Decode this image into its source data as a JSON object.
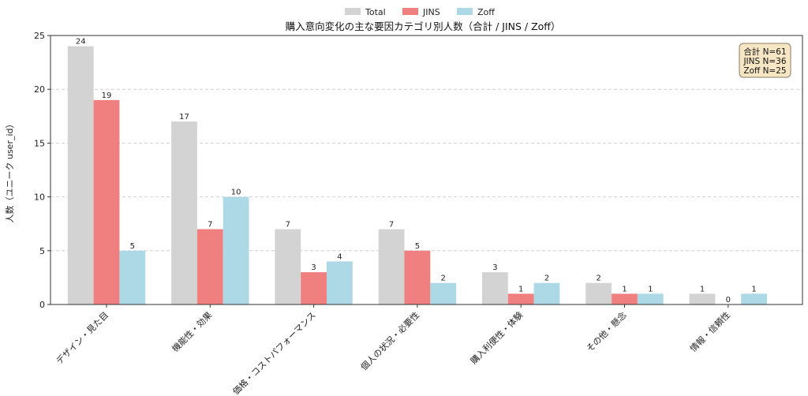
{
  "chart_data": {
    "type": "bar",
    "title": "購入意向変化の主な要因カテゴリ別人数（合計 / JINS / Zoff）",
    "xlabel": "",
    "ylabel": "人数（ユニーク user_id）",
    "ylim": [
      0,
      25
    ],
    "yticks": [
      0,
      5,
      10,
      15,
      20,
      25
    ],
    "grid": "horizontal-dashed",
    "legend_position": "top-center",
    "categories": [
      "デザイン・見た目",
      "機能性・効果",
      "価格・コストパフォーマンス",
      "個人の状況・必要性",
      "購入利便性・体験",
      "その他・懸念",
      "情報・信頼性"
    ],
    "series": [
      {
        "name": "Total",
        "color": "#d3d3d3",
        "values": [
          24,
          17,
          7,
          7,
          3,
          2,
          1
        ]
      },
      {
        "name": "JINS",
        "color": "#f08080",
        "values": [
          19,
          7,
          3,
          5,
          1,
          1,
          0
        ]
      },
      {
        "name": "Zoff",
        "color": "#add8e6",
        "values": [
          5,
          10,
          4,
          2,
          2,
          1,
          1
        ]
      }
    ],
    "annotation_box": {
      "lines": [
        "合計 N=61",
        "JINS  N=36",
        "Zoff  N=25"
      ],
      "position": "top-right",
      "fill": "#f7e6c4",
      "border": "#8b7b63"
    }
  }
}
